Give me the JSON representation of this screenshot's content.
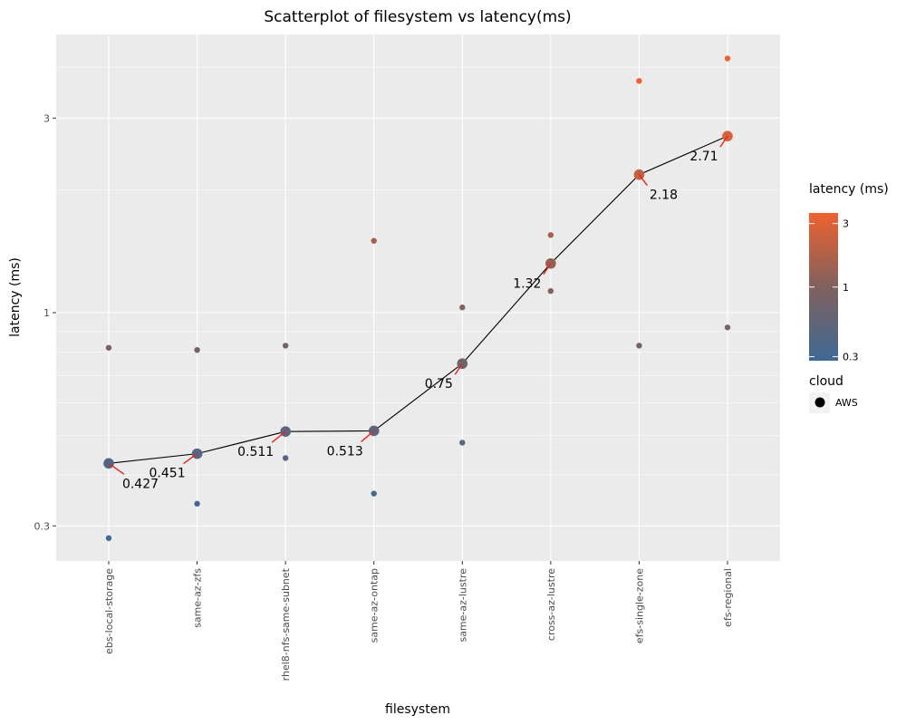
{
  "chart_data": {
    "type": "scatter",
    "title": "Scatterplot of filesystem vs latency(ms)",
    "xlabel": "filesystem",
    "ylabel": "latency (ms)",
    "y_scale": "log10",
    "ylim": [
      0.26,
      4.8
    ],
    "y_ticks": [
      0.3,
      1,
      3
    ],
    "categories": [
      "ebs-local-storage",
      "same-az-zfs",
      "rhel8-nfs-same-subnet",
      "same-az-ontap",
      "same-az-lustre",
      "cross-az-lustre",
      "efs-single-zone",
      "efs-regional"
    ],
    "mean_series": {
      "values": [
        0.427,
        0.451,
        0.511,
        0.513,
        0.75,
        1.32,
        2.18,
        2.71
      ],
      "labels": [
        "0.427",
        "0.451",
        "0.511",
        "0.513",
        "0.75",
        "1.32",
        "2.18",
        "2.71"
      ]
    },
    "points": [
      {
        "x": "ebs-local-storage",
        "y": 0.82
      },
      {
        "x": "ebs-local-storage",
        "y": 0.28
      },
      {
        "x": "same-az-zfs",
        "y": 0.81
      },
      {
        "x": "same-az-zfs",
        "y": 0.34
      },
      {
        "x": "rhel8-nfs-same-subnet",
        "y": 0.83
      },
      {
        "x": "rhel8-nfs-same-subnet",
        "y": 0.44
      },
      {
        "x": "same-az-ontap",
        "y": 1.5
      },
      {
        "x": "same-az-ontap",
        "y": 0.36
      },
      {
        "x": "same-az-lustre",
        "y": 1.03
      },
      {
        "x": "same-az-lustre",
        "y": 0.48
      },
      {
        "x": "cross-az-lustre",
        "y": 1.55
      },
      {
        "x": "cross-az-lustre",
        "y": 1.13
      },
      {
        "x": "efs-single-zone",
        "y": 3.7
      },
      {
        "x": "efs-single-zone",
        "y": 0.83
      },
      {
        "x": "efs-regional",
        "y": 4.2
      },
      {
        "x": "efs-regional",
        "y": 0.92
      }
    ],
    "color_scale": {
      "low": "#3f6895",
      "mid": "#80615e",
      "high": "#ef6130"
    },
    "legend": {
      "placement": "right",
      "color_title": "latency (ms)",
      "color_ticks": [
        0.3,
        1,
        3
      ],
      "color_tick_labels": [
        "0.3",
        "1",
        "3"
      ],
      "shape_title": "cloud",
      "shape_entries": [
        "AWS"
      ]
    },
    "colors": {
      "line": "#000000",
      "leader": "#e8241b",
      "panel": "#ebebeb",
      "grid": "#ffffff"
    }
  }
}
